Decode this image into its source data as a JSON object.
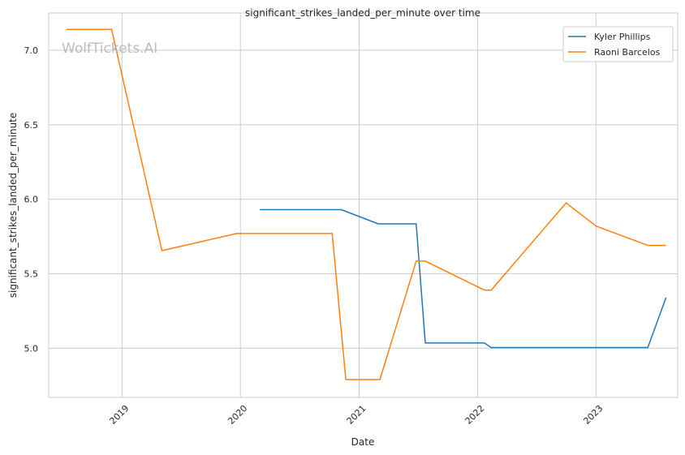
{
  "chart_data": {
    "type": "line",
    "title": "significant_strikes_landed_per_minute over time",
    "xlabel": "Date",
    "ylabel": "significant_strikes_landed_per_minute",
    "watermark": "WolfTickets.AI",
    "xlim": [
      "2018-05-20",
      "2023-09-10"
    ],
    "ylim": [
      4.67,
      7.25
    ],
    "x_ticks": [
      {
        "date": "2019-01-01",
        "label": "2019"
      },
      {
        "date": "2020-01-01",
        "label": "2020"
      },
      {
        "date": "2021-01-01",
        "label": "2021"
      },
      {
        "date": "2022-01-01",
        "label": "2022"
      },
      {
        "date": "2023-01-01",
        "label": "2023"
      }
    ],
    "y_ticks": [
      {
        "value": 5.0,
        "label": "5.0"
      },
      {
        "value": 5.5,
        "label": "5.5"
      },
      {
        "value": 6.0,
        "label": "6.0"
      },
      {
        "value": 6.5,
        "label": "6.5"
      },
      {
        "value": 7.0,
        "label": "7.0"
      }
    ],
    "grid": true,
    "legend_position": "top-right",
    "series": [
      {
        "name": "Kyler Phillips",
        "color": "#1f77b4",
        "points": [
          [
            "2020-03-01",
            5.93
          ],
          [
            "2020-11-07",
            5.93
          ],
          [
            "2021-03-01",
            5.835
          ],
          [
            "2021-06-26",
            5.835
          ],
          [
            "2021-07-24",
            5.035
          ],
          [
            "2022-01-22",
            5.035
          ],
          [
            "2022-02-12",
            5.005
          ],
          [
            "2023-06-10",
            5.005
          ],
          [
            "2023-08-05",
            5.34
          ]
        ]
      },
      {
        "name": "Raoni Barcelos",
        "color": "#ff7f0e",
        "points": [
          [
            "2018-07-14",
            7.14
          ],
          [
            "2018-11-30",
            7.14
          ],
          [
            "2019-05-04",
            5.655
          ],
          [
            "2019-12-21",
            5.77
          ],
          [
            "2020-10-10",
            5.77
          ],
          [
            "2020-11-21",
            4.79
          ],
          [
            "2021-03-06",
            4.79
          ],
          [
            "2021-06-26",
            5.585
          ],
          [
            "2021-07-24",
            5.585
          ],
          [
            "2022-01-22",
            5.39
          ],
          [
            "2022-02-12",
            5.39
          ],
          [
            "2022-10-01",
            5.975
          ],
          [
            "2023-01-01",
            5.82
          ],
          [
            "2023-06-10",
            5.69
          ],
          [
            "2023-08-05",
            5.69
          ]
        ]
      }
    ]
  }
}
